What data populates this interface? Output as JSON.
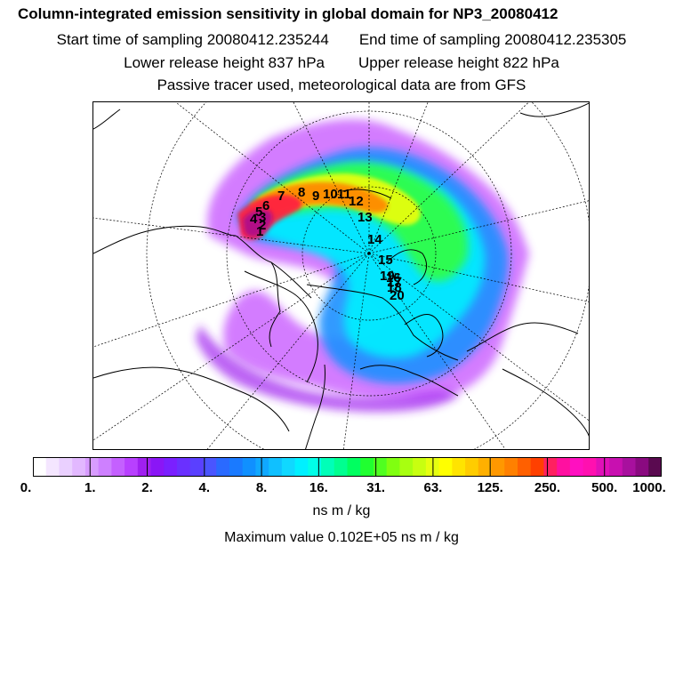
{
  "header": {
    "title": "Column-integrated emission sensitivity in global domain for NP3_20080412",
    "start_label": "Start time of sampling 20080412.235244",
    "end_label": "End time of sampling 20080412.235305",
    "lower_label": "Lower release height  837 hPa",
    "upper_label": "Upper release height  822 hPa",
    "tracer_note": "Passive tracer used, meteorological data are from GFS"
  },
  "map": {
    "track_labels": [
      "1",
      "2",
      "3",
      "4",
      "5",
      "6",
      "7",
      "8",
      "9",
      "10",
      "11",
      "12",
      "13",
      "14",
      "15",
      "16",
      "17",
      "18",
      "19",
      "20"
    ]
  },
  "colorbar": {
    "ticks": [
      "0.",
      "1.",
      "2.",
      "4.",
      "8.",
      "16.",
      "31.",
      "63.",
      "125.",
      "250.",
      "500.",
      "1000."
    ],
    "colors": [
      "#ffffff",
      "#f4e6ff",
      "#ead0ff",
      "#e2b8ff",
      "#d89cff",
      "#ce80ff",
      "#c460ff",
      "#b840ff",
      "#a020f0",
      "#8a16f6",
      "#7a20ff",
      "#6a30ff",
      "#5a40ff",
      "#4a55ff",
      "#2a6aff",
      "#1a7aff",
      "#1090ff",
      "#10a8ff",
      "#10c0ff",
      "#10d8ff",
      "#00f0ff",
      "#00ffe8",
      "#00ffb8",
      "#00ff90",
      "#00ff60",
      "#20ff30",
      "#50ff20",
      "#80ff10",
      "#a8ff10",
      "#c8ff10",
      "#e6ff10",
      "#ffff00",
      "#ffe400",
      "#ffcc00",
      "#ffb000",
      "#ff9800",
      "#ff8000",
      "#ff6000",
      "#ff4000",
      "#ff2060",
      "#ff10a0",
      "#ff10c0",
      "#ff10b0",
      "#e010b8",
      "#c810b0",
      "#a8109e",
      "#8a0a80",
      "#5a0a50"
    ],
    "units": "ns m / kg"
  },
  "footer": {
    "max_value": "Maximum value  0.102E+05 ns m / kg"
  }
}
